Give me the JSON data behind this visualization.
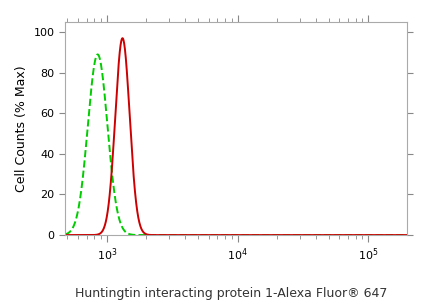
{
  "title": "Huntingtin interacting protein 1-Alexa Fluor® 647",
  "ylabel": "Cell Counts (% Max)",
  "xlim_log": [
    2.68,
    5.3
  ],
  "ylim": [
    0,
    105
  ],
  "yticks": [
    0,
    20,
    40,
    60,
    80,
    100
  ],
  "green_peak_log": 2.93,
  "green_peak_height": 89,
  "green_sigma_log": 0.075,
  "red_peak_log": 3.12,
  "red_peak_height": 97,
  "red_sigma_log": 0.055,
  "green_color": "#00cc00",
  "red_color": "#cc0000",
  "background_color": "#ffffff",
  "plot_bg_color": "#ffffff",
  "title_color": "#333333",
  "title_fontsize": 9.0,
  "spine_color": "#aaaaaa"
}
